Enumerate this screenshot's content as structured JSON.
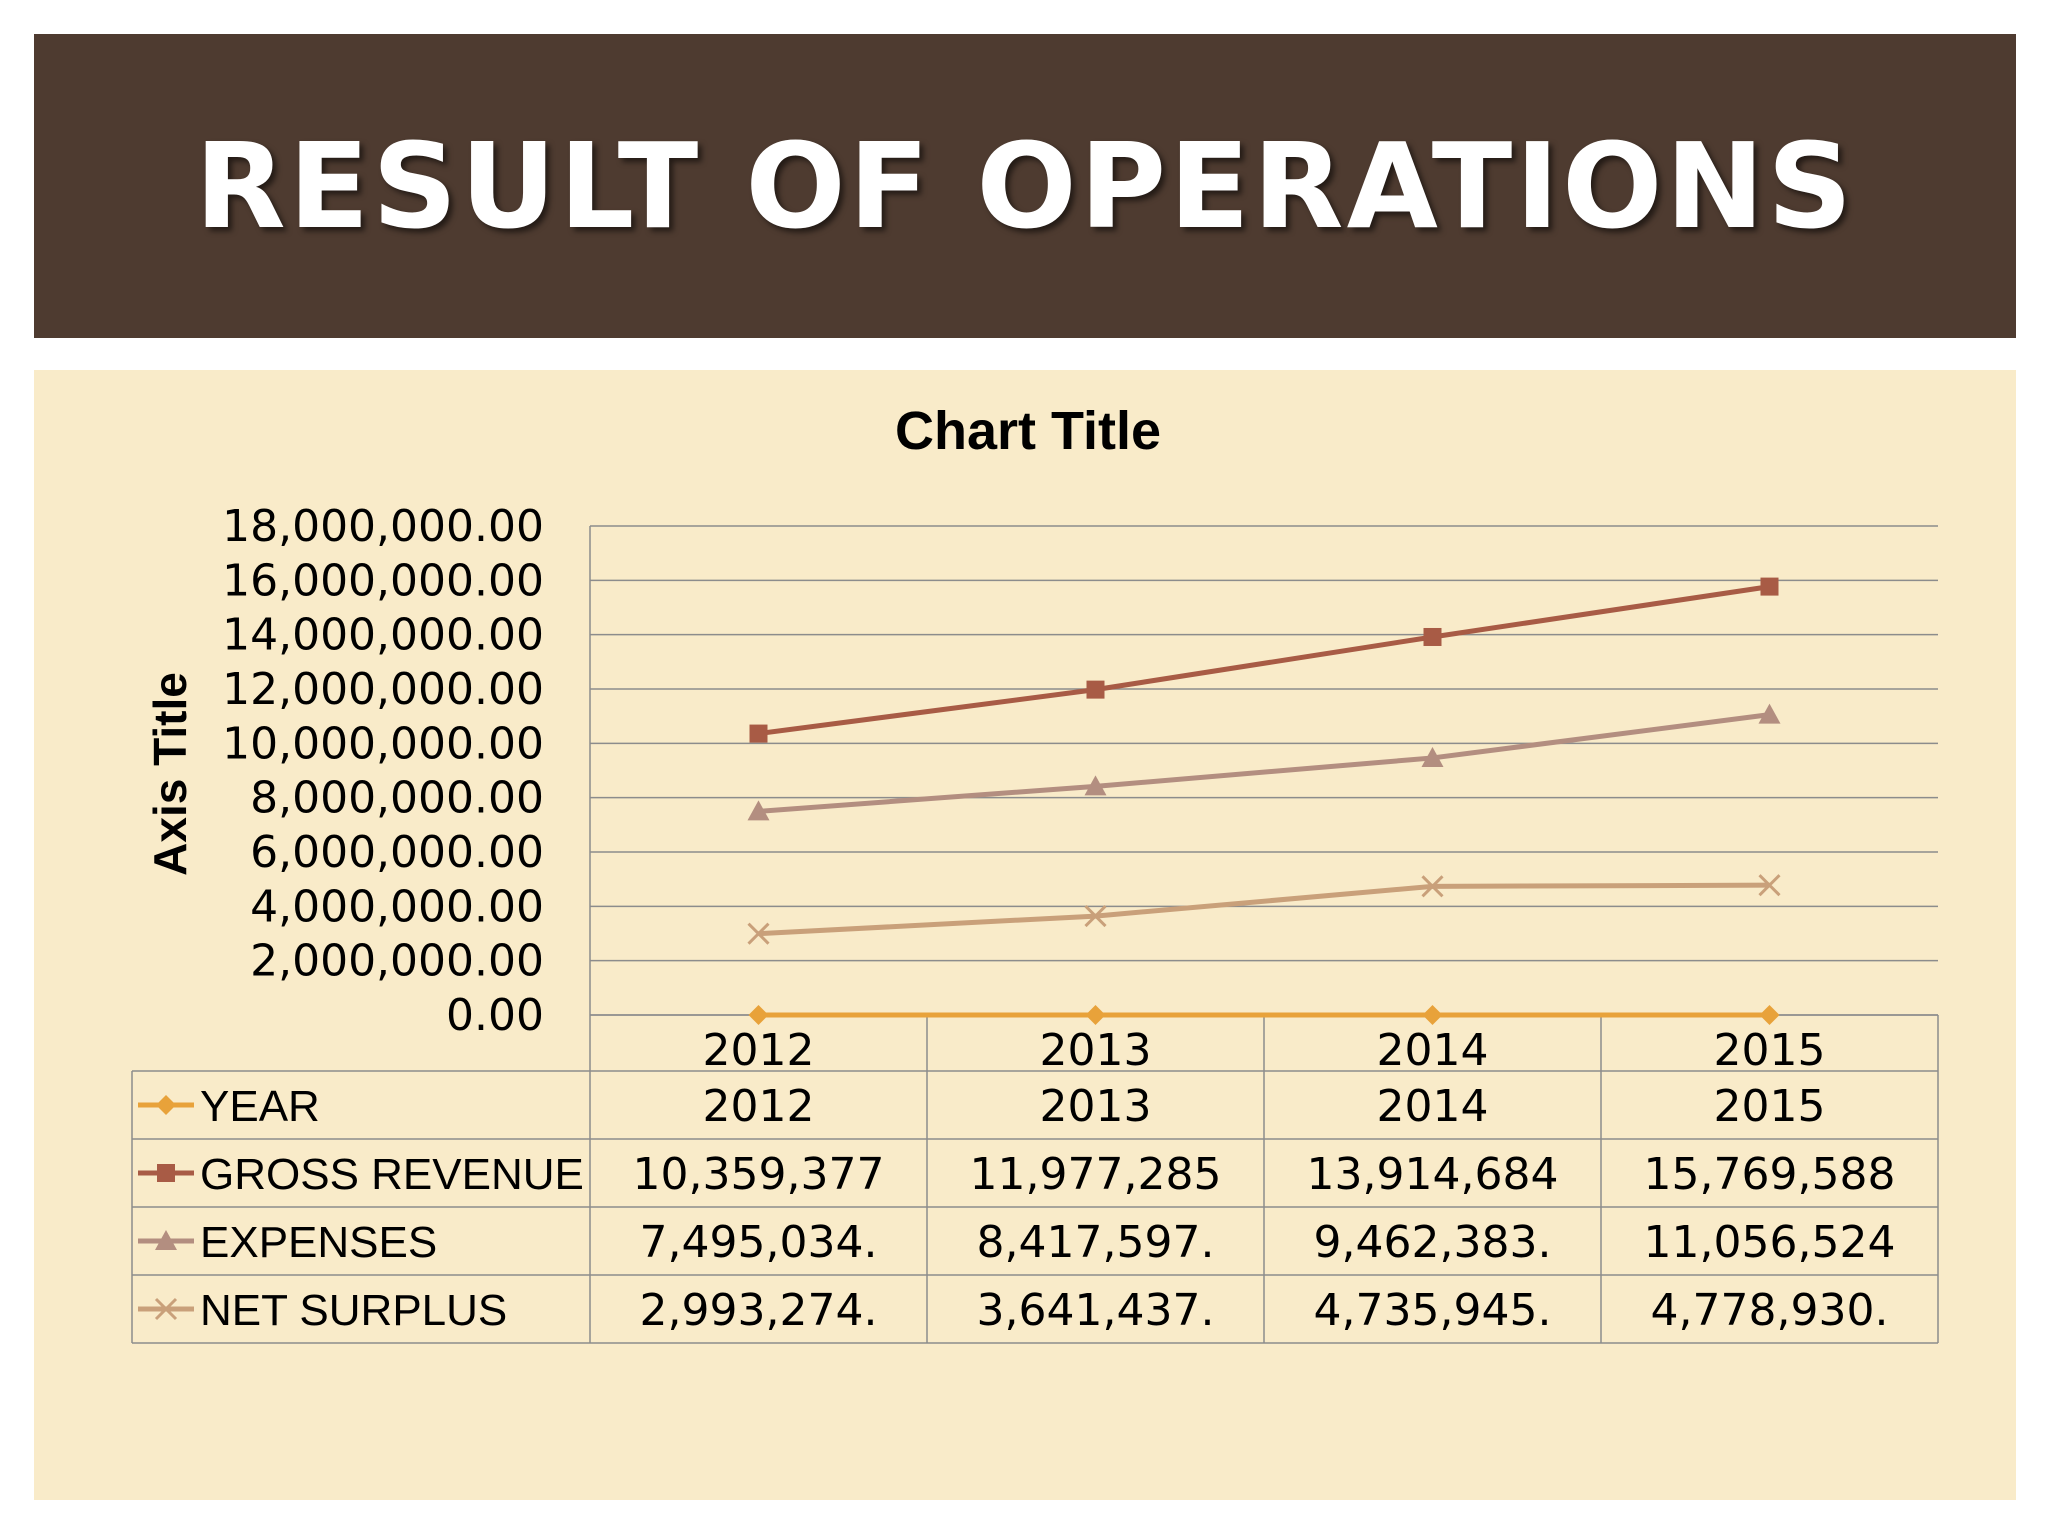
{
  "slide": {
    "title": "RESULT OF OPERATIONS"
  },
  "colors": {
    "banner": "#4e3b30",
    "panel": "#f9ebc9",
    "year": "#e8a23a",
    "gross_revenue": "#a85b45",
    "expenses": "#b38e80",
    "net_surplus": "#c9a07a",
    "grid": "#8c8c8c"
  },
  "chart_data": {
    "type": "line",
    "title": "Chart Title",
    "ylabel": "Axis Title",
    "xlabel": "",
    "categories": [
      "2012",
      "2013",
      "2014",
      "2015"
    ],
    "ylim": [
      0,
      18000000
    ],
    "y_tick_step": 2000000,
    "y_tick_labels": [
      "0.00",
      "2,000,000.00",
      "4,000,000.00",
      "6,000,000.00",
      "8,000,000.00",
      "10,000,000.00",
      "12,000,000.00",
      "14,000,000.00",
      "16,000,000.00",
      "18,000,000.00"
    ],
    "grid": true,
    "legend": "data-table",
    "series": [
      {
        "name": "YEAR",
        "marker": "diamond",
        "values": [
          2012,
          2013,
          2014,
          2015
        ],
        "table_text": [
          "2012",
          "2013",
          "2014",
          "2015"
        ]
      },
      {
        "name": "GROSS REVENUE",
        "marker": "square",
        "values": [
          10359377,
          11977285,
          13914684,
          15769588
        ],
        "table_text": [
          "10,359,377",
          "11,977,285",
          "13,914,684",
          "15,769,588"
        ]
      },
      {
        "name": "EXPENSES",
        "marker": "triangle",
        "values": [
          7495034,
          8417597,
          9462383,
          11056524
        ],
        "table_text": [
          "7,495,034.",
          "8,417,597.",
          "9,462,383.",
          "11,056,524"
        ]
      },
      {
        "name": "NET SURPLUS",
        "marker": "x",
        "values": [
          2993274,
          3641437,
          4735945,
          4778930
        ],
        "table_text": [
          "2,993,274.",
          "3,641,437.",
          "4,735,945.",
          "4,778,930."
        ]
      }
    ]
  }
}
